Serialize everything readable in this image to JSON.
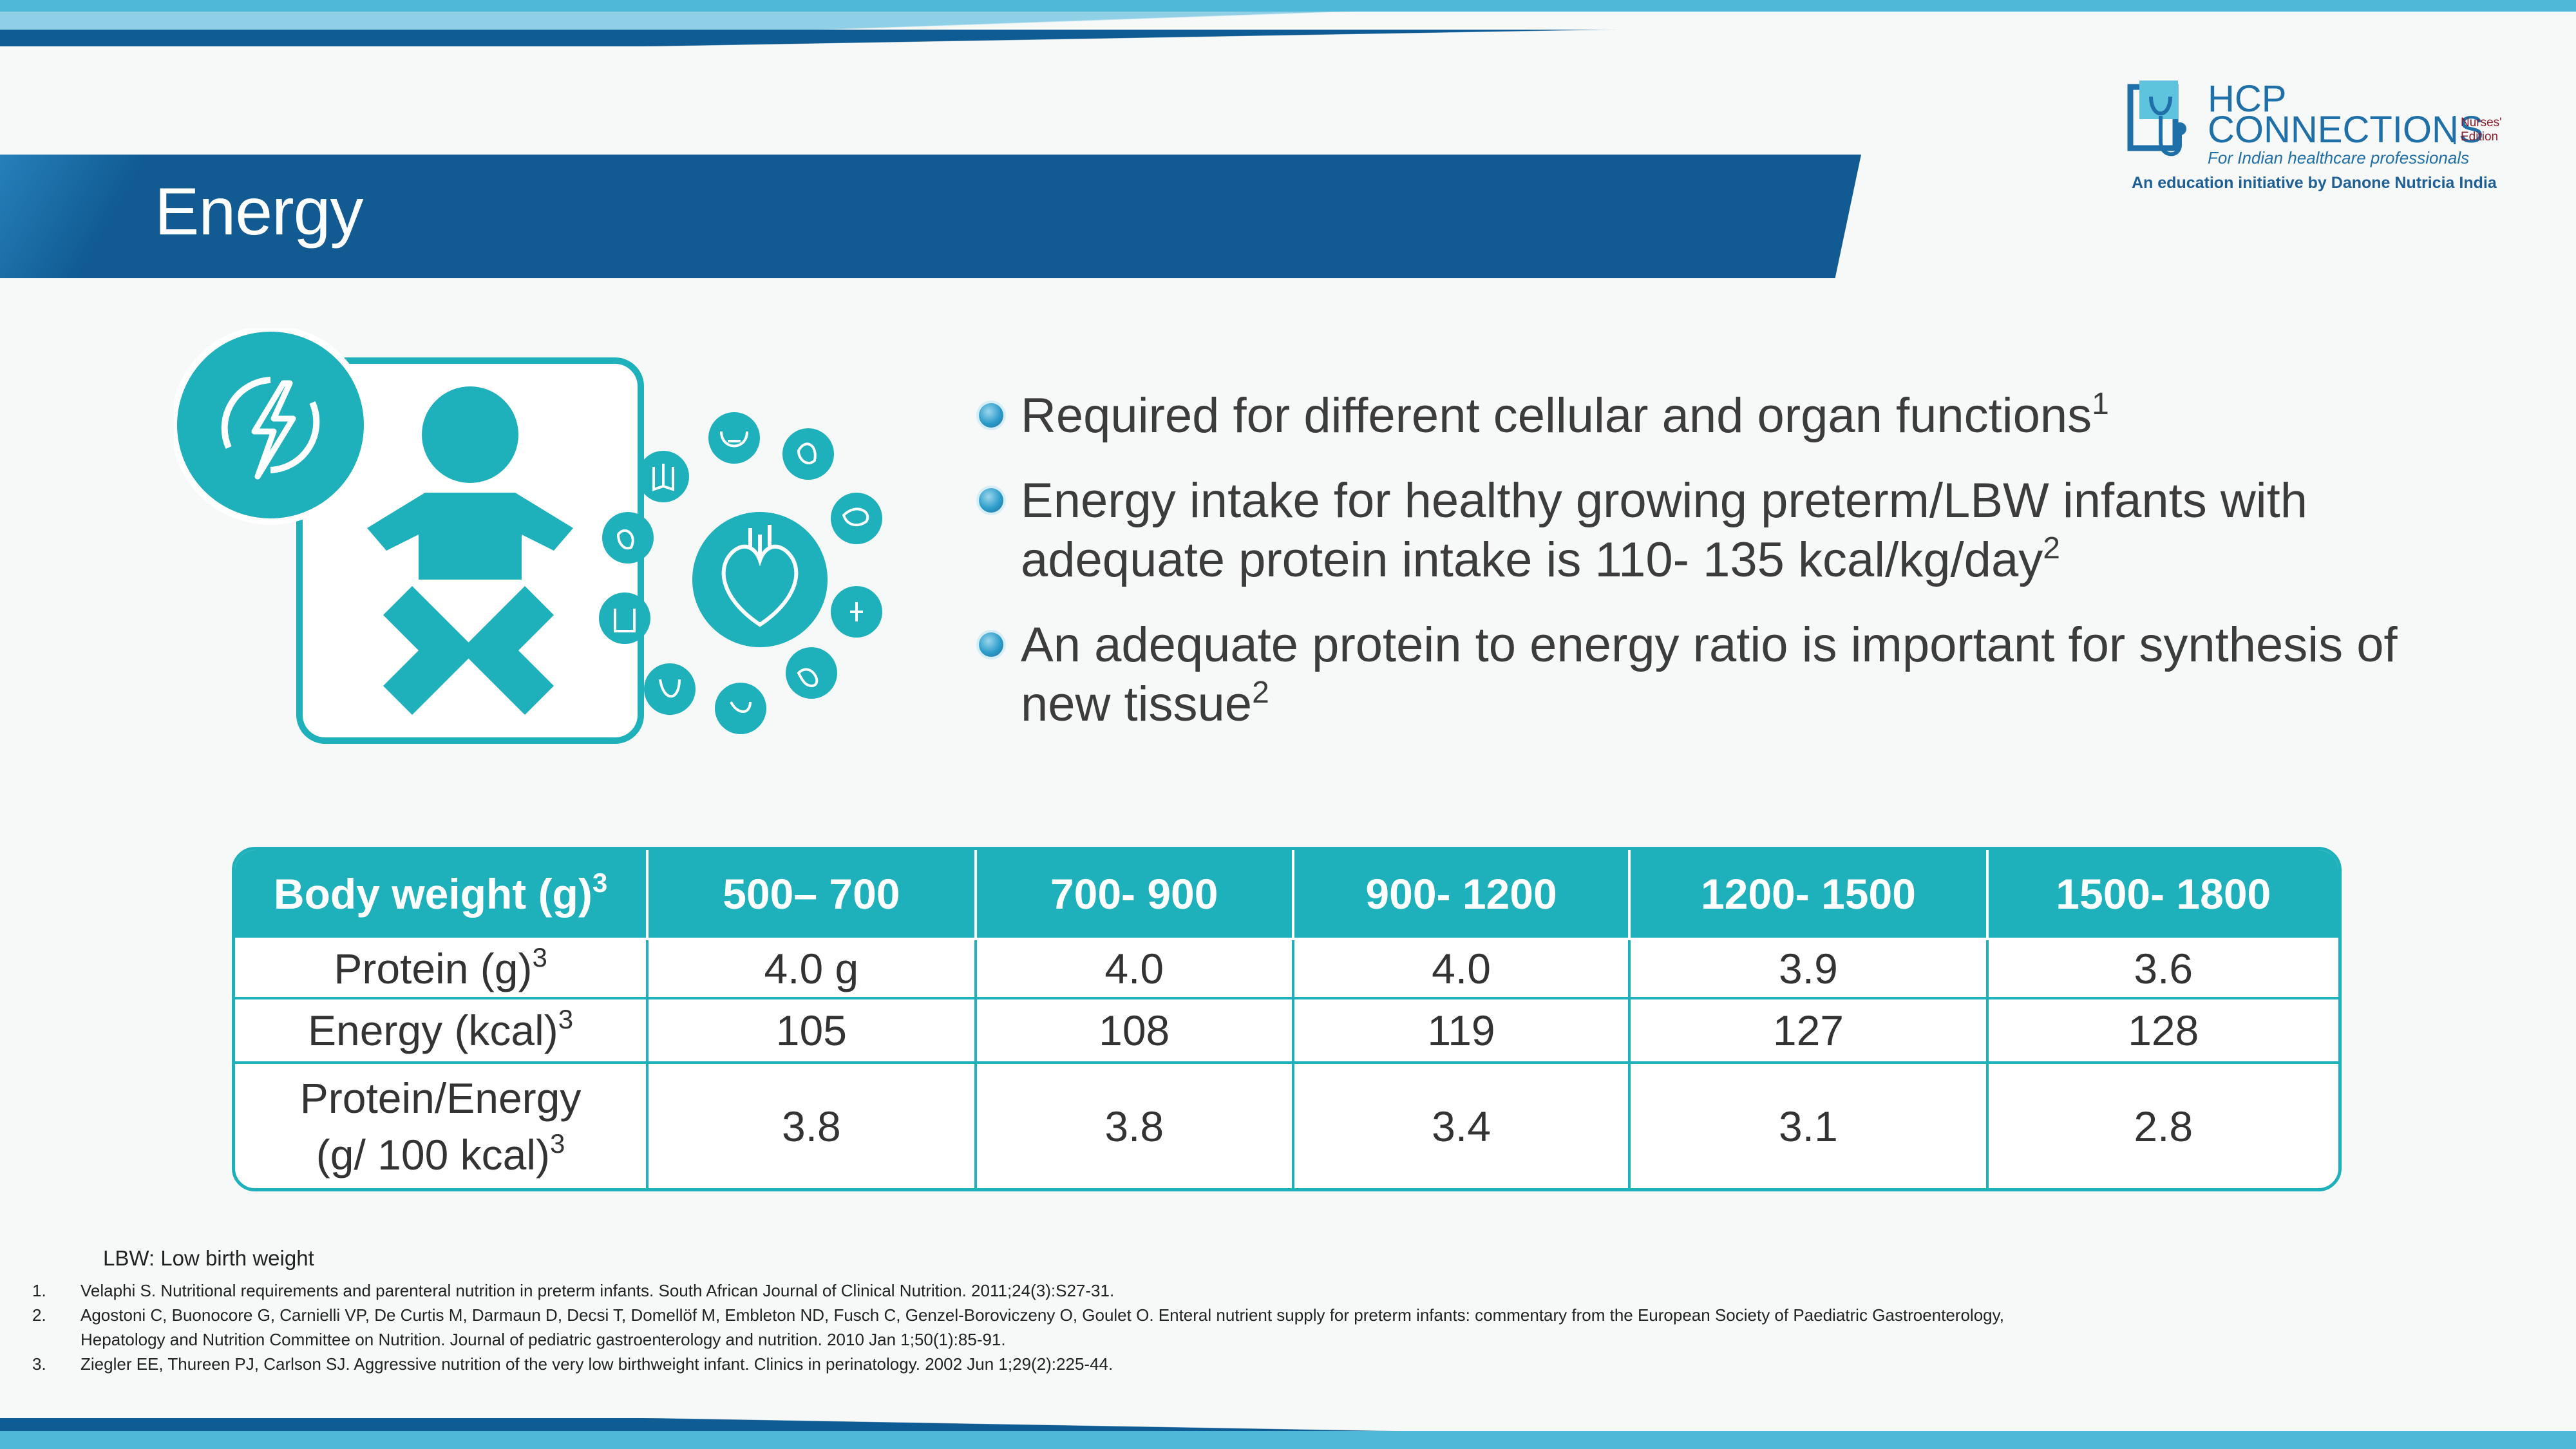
{
  "header": {
    "title": "Energy"
  },
  "logo": {
    "line1": "HCP",
    "line2": "CONNECTIONS",
    "edition_line1": "Nurses'",
    "edition_line2": "Edition",
    "tagline": "For Indian healthcare professionals",
    "initiative": "An education initiative by Danone Nutricia India"
  },
  "bullets": [
    {
      "text": "Required for different cellular and organ functions",
      "sup": "1"
    },
    {
      "text": "Energy intake for healthy growing preterm/LBW infants with adequate protein intake is 110- 135 kcal/kg/day",
      "sup": "2"
    },
    {
      "text": "An adequate protein to energy ratio is important for synthesis of new tissue",
      "sup": "2"
    }
  ],
  "table": {
    "header_label": "Body weight (g)",
    "header_sup": "3",
    "columns": [
      "500– 700",
      "700- 900",
      "900- 1200",
      "1200- 1500",
      "1500- 1800"
    ],
    "rows": [
      {
        "label": "Protein (g)",
        "sup": "3",
        "values": [
          "4.0 g",
          "4.0",
          "4.0",
          "3.9",
          "3.6"
        ]
      },
      {
        "label": "Energy (kcal)",
        "sup": "3",
        "values": [
          "105",
          "108",
          "119",
          "127",
          "128"
        ]
      },
      {
        "label_line1": "Protein/Energy",
        "label_line2": "(g/ 100 kcal)",
        "sup": "3",
        "values": [
          "3.8",
          "3.8",
          "3.4",
          "3.1",
          "2.8"
        ]
      }
    ]
  },
  "footnotes": {
    "abbreviation": "LBW: Low birth weight",
    "references": [
      {
        "num": "1.",
        "text": "Velaphi S. Nutritional requirements and parenteral nutrition in preterm infants. South African Journal of Clinical Nutrition. 2011;24(3):S27-31."
      },
      {
        "num": "2.",
        "text": "Agostoni C, Buonocore G, Carnielli VP, De Curtis M, Darmaun D, Decsi T, Domellöf M, Embleton ND, Fusch C, Genzel-Boroviczeny O, Goulet O. Enteral nutrient supply for preterm infants: commentary from the European Society of Paediatric Gastroenterology,"
      },
      {
        "num": "",
        "text": "Hepatology and Nutrition Committee on Nutrition. Journal of pediatric gastroenterology and nutrition. 2010 Jan 1;50(1):85-91."
      },
      {
        "num": "3.",
        "text": "Ziegler EE, Thureen PJ, Carlson SJ. Aggressive nutrition of the very low birthweight infant. Clinics in perinatology. 2002 Jun 1;29(2):225-44."
      }
    ]
  },
  "colors": {
    "banner": "#115a92",
    "teal": "#1eb0bb",
    "light_blue": "#4fb7d8"
  }
}
